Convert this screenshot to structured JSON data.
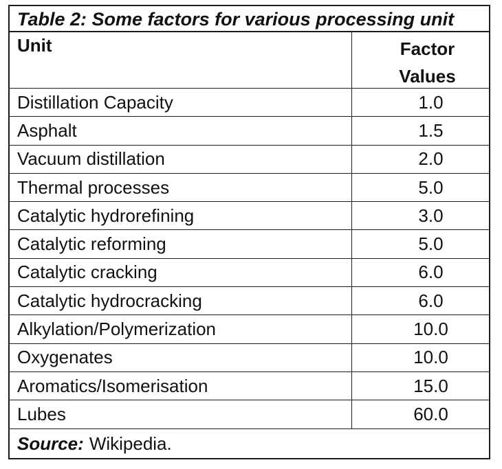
{
  "caption": "Table 2: Some factors for various processing unit",
  "header": {
    "unit": "Unit",
    "factor_line1": "Factor",
    "factor_line2": "Values"
  },
  "rows": [
    {
      "unit": "Distillation Capacity",
      "factor": "1.0"
    },
    {
      "unit": "Asphalt",
      "factor": "1.5"
    },
    {
      "unit": "Vacuum distillation",
      "factor": "2.0"
    },
    {
      "unit": "Thermal processes",
      "factor": "5.0"
    },
    {
      "unit": "Catalytic hydrorefining",
      "factor": "3.0"
    },
    {
      "unit": "Catalytic reforming",
      "factor": "5.0"
    },
    {
      "unit": "Catalytic cracking",
      "factor": "6.0"
    },
    {
      "unit": "Catalytic hydrocracking",
      "factor": "6.0"
    },
    {
      "unit": "Alkylation/Polymerization",
      "factor": "10.0"
    },
    {
      "unit": "Oxygenates",
      "factor": "10.0"
    },
    {
      "unit": "Aromatics/Isomerisation",
      "factor": "15.0"
    },
    {
      "unit": "Lubes",
      "factor": "60.0"
    }
  ],
  "source": {
    "label": "Source:",
    "text": "Wikipedia."
  }
}
